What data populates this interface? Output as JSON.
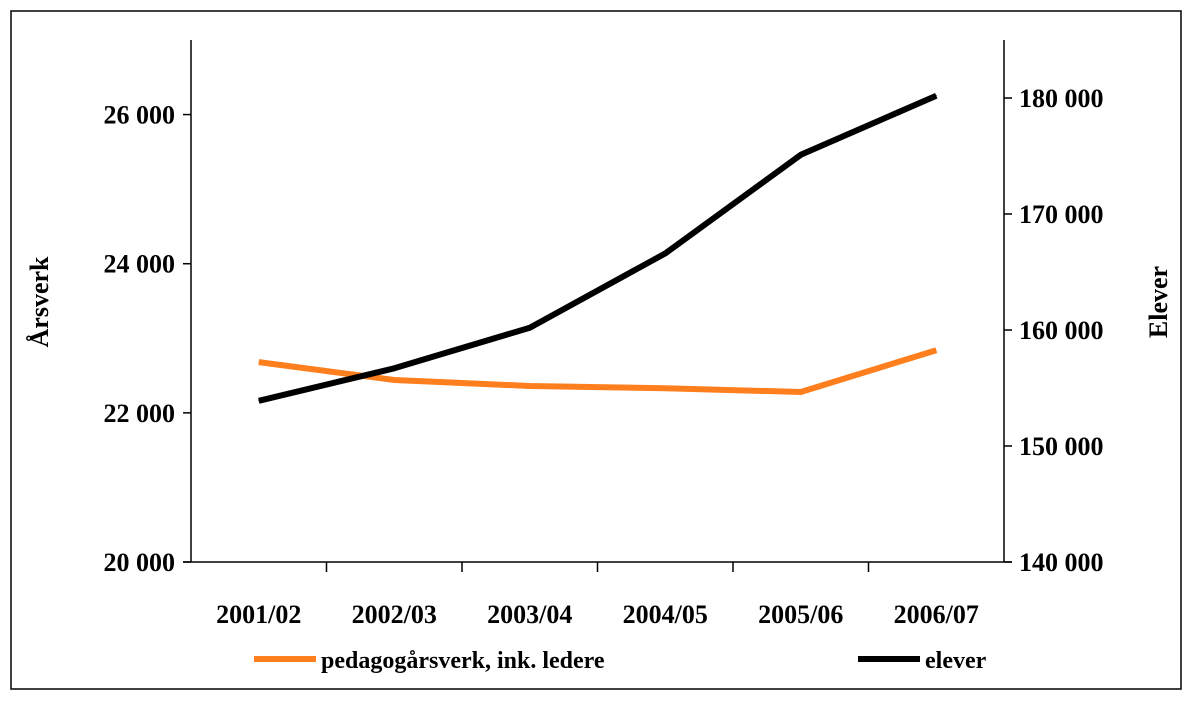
{
  "chart_data": {
    "type": "line",
    "categories": [
      "2001/02",
      "2002/03",
      "2003/04",
      "2004/05",
      "2005/06",
      "2006/07"
    ],
    "y_left": {
      "label": "Årsverk",
      "ylim": [
        20000,
        27000
      ],
      "ticks": [
        20000,
        22000,
        24000,
        26000
      ],
      "tick_labels": [
        "20 000",
        "22 000",
        "24 000",
        "26 000"
      ]
    },
    "y_right": {
      "label": "Elever",
      "ylim": [
        140000,
        185000
      ],
      "ticks": [
        140000,
        150000,
        160000,
        170000,
        180000
      ],
      "tick_labels": [
        "140 000",
        "150 000",
        "160 000",
        "170 000",
        "180 000"
      ]
    },
    "series": [
      {
        "name": "pedagogårsverk, ink. ledere",
        "axis": "left",
        "color": "#ff7f1e",
        "values": [
          22680,
          22440,
          22360,
          22330,
          22280,
          22840
        ]
      },
      {
        "name": "elever",
        "axis": "right",
        "color": "#000000",
        "values": [
          153900,
          156700,
          160200,
          166600,
          175100,
          180200
        ]
      }
    ],
    "legend_position": "bottom",
    "grid": false
  }
}
